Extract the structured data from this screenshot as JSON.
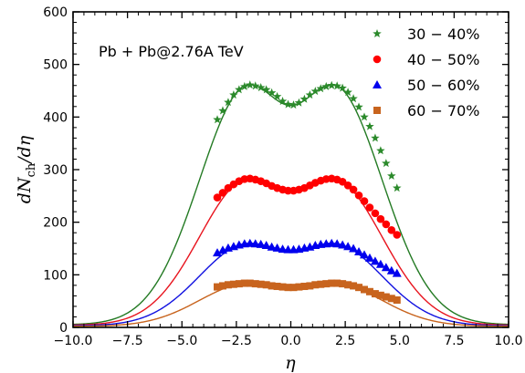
{
  "chart_data": {
    "type": "scatter",
    "annotation": "Pb + Pb@2.76A TeV",
    "xlabel": "η",
    "ylabel_main": "dN",
    "ylabel_sub": "ch",
    "ylabel_tail": "/dη",
    "xlim": [
      -10.0,
      10.0
    ],
    "ylim": [
      0,
      600
    ],
    "xticks": [
      -10.0,
      -7.5,
      -5.0,
      -2.5,
      0.0,
      2.5,
      5.0,
      7.5,
      10.0
    ],
    "xtick_labels": [
      "−10.0",
      "−7.5",
      "−5.0",
      "−2.5",
      "0.0",
      "2.5",
      "5.0",
      "7.5",
      "10.0"
    ],
    "yticks": [
      0,
      100,
      200,
      300,
      400,
      500,
      600
    ],
    "ytick_labels": [
      "0",
      "100",
      "200",
      "300",
      "400",
      "500",
      "600"
    ],
    "grid": false,
    "legend_position": "top-right",
    "series": [
      {
        "name": "30 − 40%",
        "marker": "star",
        "color": "#2b8a2b",
        "curve_color": "#237a23",
        "points": [
          [
            -3.375,
            395
          ],
          [
            -3.125,
            412
          ],
          [
            -2.875,
            428
          ],
          [
            -2.625,
            442
          ],
          [
            -2.375,
            452
          ],
          [
            -2.125,
            458
          ],
          [
            -1.875,
            461
          ],
          [
            -1.625,
            459
          ],
          [
            -1.375,
            456
          ],
          [
            -1.125,
            452
          ],
          [
            -0.875,
            446
          ],
          [
            -0.625,
            439
          ],
          [
            -0.375,
            430
          ],
          [
            -0.125,
            424
          ],
          [
            0.125,
            423
          ],
          [
            0.375,
            427
          ],
          [
            0.625,
            434
          ],
          [
            0.875,
            442
          ],
          [
            1.125,
            449
          ],
          [
            1.375,
            454
          ],
          [
            1.625,
            458
          ],
          [
            1.875,
            460
          ],
          [
            2.125,
            459
          ],
          [
            2.375,
            455
          ],
          [
            2.625,
            447
          ],
          [
            2.875,
            435
          ],
          [
            3.125,
            419
          ],
          [
            3.375,
            400
          ],
          [
            3.625,
            382
          ],
          [
            3.875,
            360
          ],
          [
            4.125,
            336
          ],
          [
            4.375,
            312
          ],
          [
            4.625,
            288
          ],
          [
            4.875,
            265
          ]
        ],
        "model_peak": [
          1.9,
          462
        ],
        "model_center": 422,
        "model_width": 5.2,
        "model_edge": 5
      },
      {
        "name": "40 − 50%",
        "marker": "circle",
        "color": "#ff0000",
        "curve_color": "#e8141e",
        "points": [
          [
            -3.375,
            247
          ],
          [
            -3.125,
            256
          ],
          [
            -2.875,
            265
          ],
          [
            -2.625,
            272
          ],
          [
            -2.375,
            278
          ],
          [
            -2.125,
            282
          ],
          [
            -1.875,
            283
          ],
          [
            -1.625,
            281
          ],
          [
            -1.375,
            278
          ],
          [
            -1.125,
            274
          ],
          [
            -0.875,
            269
          ],
          [
            -0.625,
            265
          ],
          [
            -0.375,
            262
          ],
          [
            -0.125,
            260
          ],
          [
            0.125,
            260
          ],
          [
            0.375,
            262
          ],
          [
            0.625,
            265
          ],
          [
            0.875,
            270
          ],
          [
            1.125,
            275
          ],
          [
            1.375,
            279
          ],
          [
            1.625,
            282
          ],
          [
            1.875,
            283
          ],
          [
            2.125,
            281
          ],
          [
            2.375,
            277
          ],
          [
            2.625,
            270
          ],
          [
            2.875,
            262
          ],
          [
            3.125,
            251
          ],
          [
            3.375,
            240
          ],
          [
            3.625,
            228
          ],
          [
            3.875,
            217
          ],
          [
            4.125,
            206
          ],
          [
            4.375,
            196
          ],
          [
            4.625,
            185
          ],
          [
            4.875,
            176
          ]
        ],
        "model_peak": [
          1.9,
          283
        ],
        "model_center": 258,
        "model_width": 5.2,
        "model_edge": 4
      },
      {
        "name": "50 − 60%",
        "marker": "triangle",
        "color": "#0000ee",
        "curve_color": "#1010e0",
        "points": [
          [
            -3.375,
            142
          ],
          [
            -3.125,
            147
          ],
          [
            -2.875,
            151
          ],
          [
            -2.625,
            154
          ],
          [
            -2.375,
            157
          ],
          [
            -2.125,
            159
          ],
          [
            -1.875,
            160
          ],
          [
            -1.625,
            159
          ],
          [
            -1.375,
            158
          ],
          [
            -1.125,
            156
          ],
          [
            -0.875,
            153
          ],
          [
            -0.625,
            151
          ],
          [
            -0.375,
            149
          ],
          [
            -0.125,
            148
          ],
          [
            0.125,
            148
          ],
          [
            0.375,
            149
          ],
          [
            0.625,
            151
          ],
          [
            0.875,
            153
          ],
          [
            1.125,
            156
          ],
          [
            1.375,
            158
          ],
          [
            1.625,
            159
          ],
          [
            1.875,
            160
          ],
          [
            2.125,
            159
          ],
          [
            2.375,
            157
          ],
          [
            2.625,
            154
          ],
          [
            2.875,
            150
          ],
          [
            3.125,
            144
          ],
          [
            3.375,
            138
          ],
          [
            3.625,
            132
          ],
          [
            3.875,
            126
          ],
          [
            4.125,
            120
          ],
          [
            4.375,
            114
          ],
          [
            4.625,
            108
          ],
          [
            4.875,
            103
          ]
        ],
        "model_peak": [
          1.9,
          160
        ],
        "model_center": 147,
        "model_width": 5.2,
        "model_edge": 3
      },
      {
        "name": "60 − 70%",
        "marker": "square",
        "color": "#c8641e",
        "curve_color": "#c8641e",
        "points": [
          [
            -3.375,
            77
          ],
          [
            -3.125,
            79
          ],
          [
            -2.875,
            81
          ],
          [
            -2.625,
            82
          ],
          [
            -2.375,
            83
          ],
          [
            -2.125,
            84
          ],
          [
            -1.875,
            84
          ],
          [
            -1.625,
            83
          ],
          [
            -1.375,
            82
          ],
          [
            -1.125,
            81
          ],
          [
            -0.875,
            79
          ],
          [
            -0.625,
            78
          ],
          [
            -0.375,
            77
          ],
          [
            -0.125,
            76
          ],
          [
            0.125,
            76
          ],
          [
            0.375,
            77
          ],
          [
            0.625,
            78
          ],
          [
            0.875,
            79
          ],
          [
            1.125,
            81
          ],
          [
            1.375,
            82
          ],
          [
            1.625,
            83
          ],
          [
            1.875,
            84
          ],
          [
            2.125,
            84
          ],
          [
            2.375,
            83
          ],
          [
            2.625,
            81
          ],
          [
            2.875,
            79
          ],
          [
            3.125,
            76
          ],
          [
            3.375,
            72
          ],
          [
            3.625,
            68
          ],
          [
            3.875,
            64
          ],
          [
            4.125,
            61
          ],
          [
            4.375,
            58
          ],
          [
            4.625,
            55
          ],
          [
            4.875,
            52
          ]
        ],
        "model_peak": [
          1.9,
          84
        ],
        "model_center": 76,
        "model_width": 5.2,
        "model_edge": 2
      }
    ]
  }
}
